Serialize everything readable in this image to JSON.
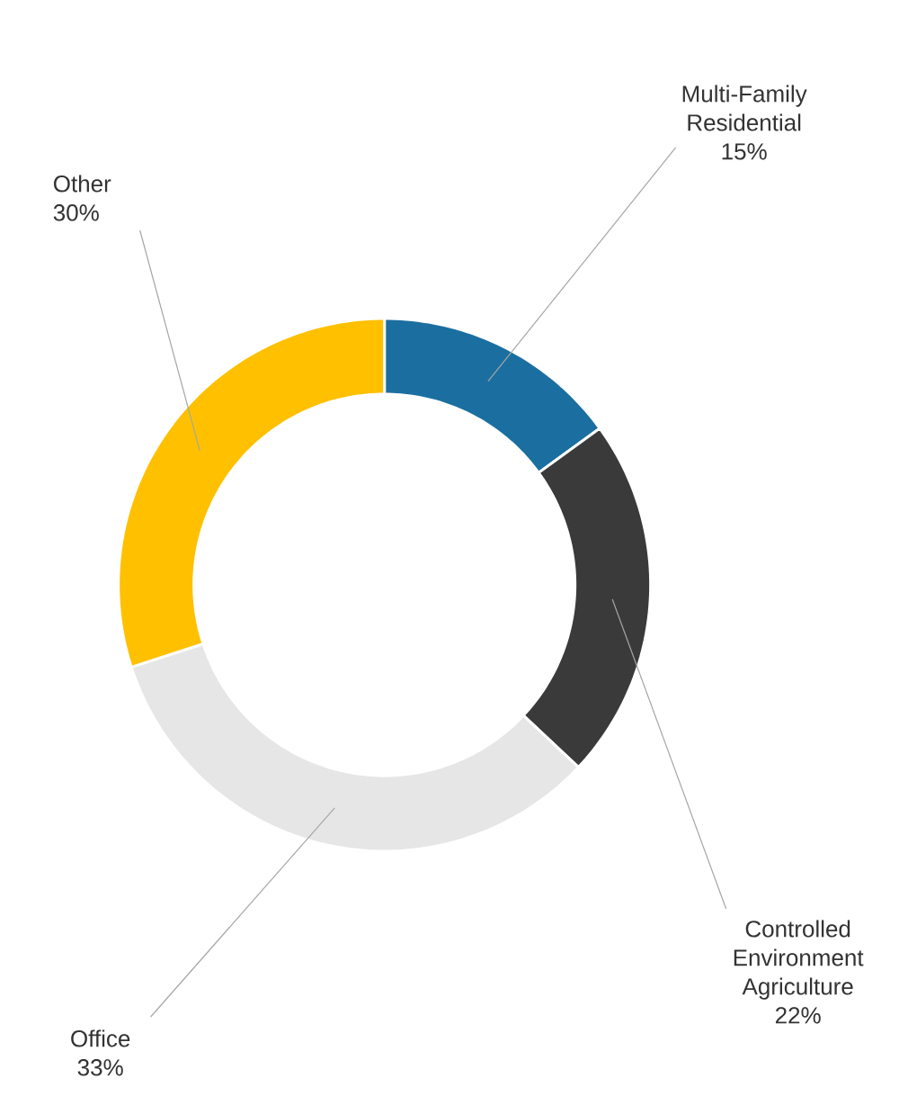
{
  "chart_data": {
    "type": "donut",
    "categories": [
      "Multi-Family Residential",
      "Controlled Environment Agriculture",
      "Office",
      "Other"
    ],
    "values": [
      15,
      22,
      33,
      30
    ],
    "colors": [
      "#1b6fa0",
      "#3a3a3a",
      "#e6e6e6",
      "#ffc000"
    ],
    "value_labels": [
      "15%",
      "22%",
      "33%",
      "30%"
    ]
  }
}
